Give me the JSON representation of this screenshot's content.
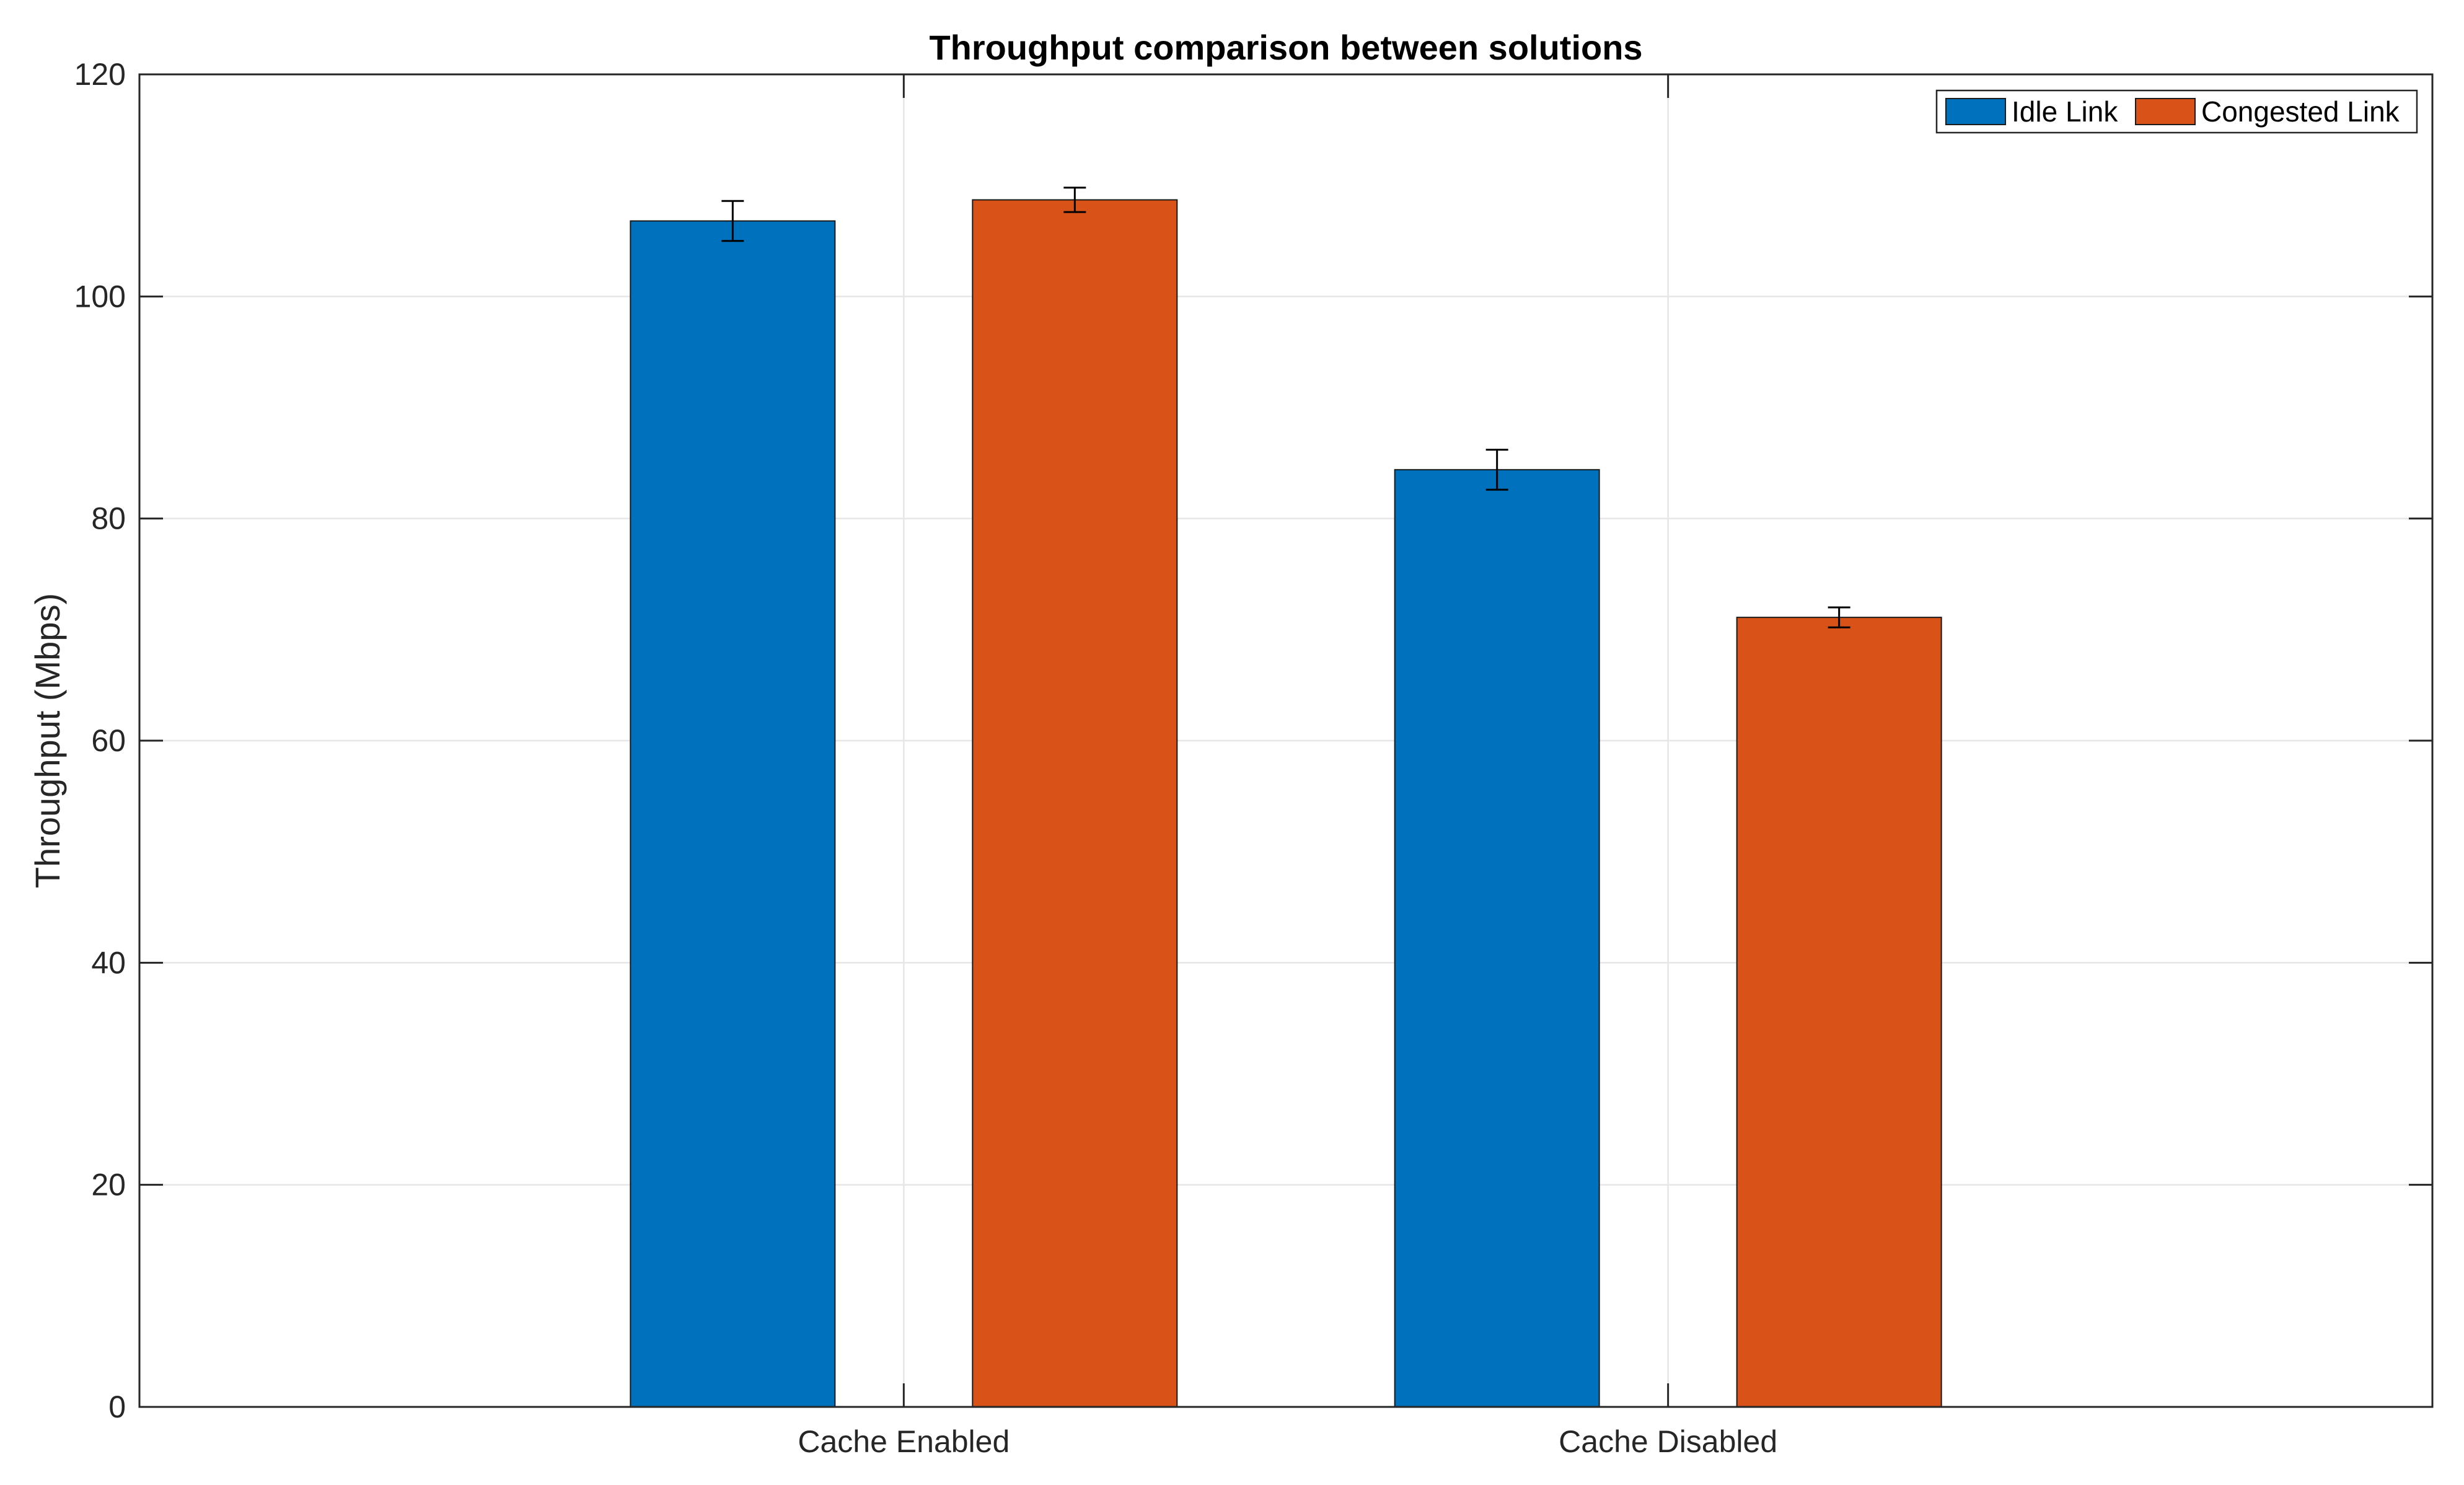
{
  "chart_data": {
    "type": "bar",
    "title": "Throughput comparison between solutions",
    "xlabel": "",
    "ylabel": "Throughput (Mbps)",
    "categories": [
      "Cache Enabled",
      "Cache Disabled"
    ],
    "series": [
      {
        "name": "Idle Link",
        "color": "#0072bd",
        "values": [
          106.8,
          84.4
        ],
        "errors": [
          1.8,
          1.8
        ]
      },
      {
        "name": "Congested Link",
        "color": "#d95319",
        "values": [
          108.7,
          71.1
        ],
        "errors": [
          1.1,
          0.9
        ]
      }
    ],
    "ylim": [
      0,
      120
    ],
    "yticks": [
      0,
      20,
      40,
      60,
      80,
      100,
      120
    ],
    "grid": true,
    "legend_location": "top-right",
    "legend_orientation": "horizontal"
  }
}
